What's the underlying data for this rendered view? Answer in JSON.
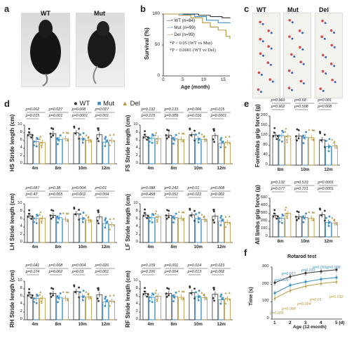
{
  "panel_a": {
    "letter": "a",
    "labels": [
      "WT",
      "Mut"
    ]
  },
  "panel_b": {
    "letter": "b",
    "ylabel": "Survival (%)",
    "xlabel": "Age (month)",
    "yticks": [
      "100",
      "50",
      "0"
    ],
    "xticks": [
      "0",
      "5",
      "10",
      "15"
    ],
    "legend": [
      "WT (n=84)",
      "Mut (n=99)",
      "Del (n=99)"
    ],
    "stats": [
      "*P < 0.05 (WT vs Mut)",
      "*P < 0.0001 (WT vs Del)"
    ],
    "colors": {
      "WT": "#333333",
      "Mut": "#3b8fc4",
      "Del": "#b8963c"
    }
  },
  "panel_c": {
    "letter": "c",
    "labels": [
      "WT",
      "Mut",
      "Del"
    ]
  },
  "panel_d": {
    "letter": "d",
    "legend": [
      "WT",
      "Mut",
      "Del"
    ],
    "xticks": [
      "4m",
      "8m",
      "10m",
      "12m"
    ],
    "charts": [
      {
        "ylabel": "HS Stride length (cm)",
        "yticks": [
          "0",
          "2",
          "4",
          "6",
          "8",
          "10"
        ],
        "p": [
          [
            "p=0.002",
            "p=0.015"
          ],
          [
            "p=0.027",
            "p=0.001"
          ],
          [
            "p=0.008",
            "p=0.0001"
          ],
          [
            "p=0.027",
            "p=0.001"
          ]
        ]
      },
      {
        "ylabel": "FS Stride length (cm)",
        "yticks": [
          "0",
          "2",
          "4",
          "6",
          "8",
          "10"
        ],
        "p": [
          [
            "p=0.132",
            "p=0.215"
          ],
          [
            "p=0.133",
            "p=0.009"
          ],
          [
            "p=0.006",
            "p=0.016"
          ],
          [
            "p=0.015",
            "p=0.0001"
          ]
        ]
      },
      {
        "ylabel": "LH Stride length (cm)",
        "yticks": [
          "0",
          "2",
          "4",
          "6",
          "8",
          "10"
        ],
        "p": [
          [
            "p=0.087",
            "p=0.47"
          ],
          [
            "p=0.38",
            "p=0.065"
          ],
          [
            "p=0.004",
            "p=0.002"
          ],
          [
            "p=0.01",
            "p=0.004"
          ]
        ]
      },
      {
        "ylabel": "LF Stride length (cm)",
        "yticks": [
          "0",
          "2",
          "4",
          "6",
          "8",
          "10"
        ],
        "p": [
          [
            "p=0.088",
            "p=0.458"
          ],
          [
            "p=0.242",
            "p=0.051"
          ],
          [
            "p=0.01",
            "p=0.022"
          ],
          [
            "p=0.008",
            "p=0.002"
          ]
        ]
      },
      {
        "ylabel": "RH Stride length (cm)",
        "yticks": [
          "0",
          "2",
          "4",
          "6",
          "8",
          "10"
        ],
        "p": [
          [
            "p=0.041",
            "p=0.174"
          ],
          [
            "p=0.008",
            "p=0.002"
          ],
          [
            "p=0.004",
            "p=0.03"
          ],
          [
            "p=0.026",
            "p=0.001"
          ]
        ]
      },
      {
        "ylabel": "RF Stride length (cm)",
        "yticks": [
          "0",
          "2",
          "4",
          "6",
          "8",
          "10"
        ],
        "p": [
          [
            "p=0.109",
            "p=0.106"
          ],
          [
            "p=0.001",
            "p=0.004"
          ],
          [
            "p=0.014",
            "p=0.013"
          ],
          [
            "p=0.023",
            "p=0.002"
          ]
        ]
      }
    ]
  },
  "panel_e": {
    "letter": "e",
    "xticks": [
      "8m",
      "10m",
      "12m"
    ],
    "charts": [
      {
        "ylabel": "Forelimbs grip force (g)",
        "yticks": [
          "0",
          "40",
          "80",
          "120",
          "160",
          "200"
        ],
        "p": [
          [
            "p=0.969",
            "p=0.962"
          ],
          [
            "p=0.68",
            "p=0.508"
          ],
          [
            "p=0.001",
            "p=0.008"
          ]
        ]
      },
      {
        "ylabel": "All limbs grip force (g)",
        "yticks": [
          "0",
          "100",
          "200",
          "300",
          "400",
          "500"
        ],
        "p": [
          [
            "p=0.132",
            "p=0.077"
          ],
          [
            "p=0.519",
            "p=0.721"
          ],
          [
            "p=0.0001",
            "p=0.0001"
          ]
        ]
      }
    ]
  },
  "panel_f": {
    "letter": "f",
    "title": "Rotarod test",
    "ylabel": "Time (s)",
    "xlabel": "Age (12-month)",
    "xticks": [
      "1",
      "2",
      "3",
      "4",
      "5 (d)"
    ],
    "yticks": [
      "0",
      "100",
      "200",
      "300"
    ],
    "p_mut": [
      "p=0.026",
      "p=0.017",
      "p=0.033",
      "p=0.059",
      "p=0.038"
    ],
    "p_del": [
      "p=0.005",
      "p=0.008",
      "p=0.004",
      "p=0.01",
      "p=0.032"
    ]
  },
  "chart_data": [
    {
      "type": "bar",
      "title": "",
      "ylabel": "HS Stride length (cm)",
      "categories": [
        "4m",
        "8m",
        "10m",
        "12m"
      ],
      "ylim": [
        0,
        10
      ],
      "series": [
        {
          "name": "WT",
          "values": [
            7.6,
            7.8,
            8.0,
            7.5
          ]
        },
        {
          "name": "Mut",
          "values": [
            5.7,
            6.3,
            6.4,
            5.6
          ]
        },
        {
          "name": "Del",
          "values": [
            5.5,
            6.5,
            6.1,
            6.0
          ]
        }
      ]
    },
    {
      "type": "bar",
      "title": "",
      "ylabel": "FS Stride length (cm)",
      "categories": [
        "4m",
        "8m",
        "10m",
        "12m"
      ],
      "ylim": [
        0,
        10
      ],
      "series": [
        {
          "name": "WT",
          "values": [
            7.0,
            7.4,
            7.5,
            7.3
          ]
        },
        {
          "name": "Mut",
          "values": [
            6.6,
            6.4,
            6.4,
            5.3
          ]
        },
        {
          "name": "Del",
          "values": [
            6.5,
            6.3,
            6.3,
            5.5
          ]
        }
      ]
    },
    {
      "type": "bar",
      "title": "",
      "ylabel": "LH Stride length (cm)",
      "categories": [
        "4m",
        "8m",
        "10m",
        "12m"
      ],
      "ylim": [
        0,
        10
      ],
      "series": [
        {
          "name": "WT",
          "values": [
            6.9,
            7.0,
            7.4,
            6.6
          ]
        },
        {
          "name": "Mut",
          "values": [
            6.2,
            6.4,
            6.2,
            4.9
          ]
        },
        {
          "name": "Del",
          "values": [
            6.3,
            6.0,
            5.8,
            4.6
          ]
        }
      ]
    },
    {
      "type": "bar",
      "title": "",
      "ylabel": "LF Stride length (cm)",
      "categories": [
        "4m",
        "8m",
        "10m",
        "12m"
      ],
      "ylim": [
        0,
        10
      ],
      "series": [
        {
          "name": "WT",
          "values": [
            7.1,
            7.0,
            7.1,
            6.8
          ]
        },
        {
          "name": "Mut",
          "values": [
            6.4,
            6.4,
            6.2,
            5.5
          ]
        },
        {
          "name": "Del",
          "values": [
            6.6,
            6.3,
            5.9,
            5.2
          ]
        }
      ]
    },
    {
      "type": "bar",
      "title": "",
      "ylabel": "RH Stride length (cm)",
      "categories": [
        "4m",
        "8m",
        "10m",
        "12m"
      ],
      "ylim": [
        0,
        10
      ],
      "series": [
        {
          "name": "WT",
          "values": [
            6.5,
            6.8,
            7.3,
            6.5
          ]
        },
        {
          "name": "Mut",
          "values": [
            5.5,
            5.8,
            6.0,
            4.6
          ]
        },
        {
          "name": "Del",
          "values": [
            5.6,
            5.6,
            5.9,
            4.8
          ]
        }
      ]
    },
    {
      "type": "bar",
      "title": "",
      "ylabel": "RF Stride length (cm)",
      "categories": [
        "4m",
        "8m",
        "10m",
        "12m"
      ],
      "ylim": [
        0,
        10
      ],
      "series": [
        {
          "name": "WT",
          "values": [
            6.8,
            6.8,
            7.0,
            6.6
          ]
        },
        {
          "name": "Mut",
          "values": [
            5.8,
            6.0,
            6.0,
            5.2
          ]
        },
        {
          "name": "Del",
          "values": [
            6.1,
            5.8,
            5.7,
            5.4
          ]
        }
      ]
    },
    {
      "type": "bar",
      "title": "",
      "ylabel": "Forelimbs grip force (g)",
      "categories": [
        "8m",
        "10m",
        "12m"
      ],
      "ylim": [
        0,
        200
      ],
      "series": [
        {
          "name": "WT",
          "values": [
            122,
            118,
            103
          ]
        },
        {
          "name": "Mut",
          "values": [
            120,
            114,
            76
          ]
        },
        {
          "name": "Del",
          "values": [
            118,
            112,
            78
          ]
        }
      ]
    },
    {
      "type": "bar",
      "title": "",
      "ylabel": "All limbs grip force (g)",
      "categories": [
        "8m",
        "10m",
        "12m"
      ],
      "ylim": [
        0,
        500
      ],
      "series": [
        {
          "name": "WT",
          "values": [
            275,
            260,
            285
          ]
        },
        {
          "name": "Mut",
          "values": [
            240,
            250,
            188
          ]
        },
        {
          "name": "Del",
          "values": [
            305,
            240,
            180
          ]
        }
      ]
    },
    {
      "type": "line",
      "title": "Rotarod test",
      "xlabel": "Age (12-month)",
      "ylabel": "Time (s)",
      "x": [
        1,
        2,
        3,
        4,
        5
      ],
      "ylim": [
        0,
        300
      ],
      "series": [
        {
          "name": "WT",
          "values": [
            210,
            245,
            265,
            275,
            285
          ]
        },
        {
          "name": "Mut",
          "values": [
            150,
            195,
            215,
            230,
            240
          ]
        },
        {
          "name": "Del",
          "values": [
            120,
            165,
            190,
            205,
            215
          ]
        }
      ]
    },
    {
      "type": "line",
      "title": "",
      "xlabel": "Age (month)",
      "ylabel": "Survival (%)",
      "xlim": [
        0,
        17
      ],
      "ylim": [
        0,
        100
      ],
      "series": [
        {
          "name": "WT (n=84)",
          "x": [
            0,
            6,
            9,
            12,
            15,
            17
          ],
          "values": [
            100,
            100,
            98,
            96,
            94,
            93
          ]
        },
        {
          "name": "Mut (n=99)",
          "x": [
            0,
            5,
            8,
            11,
            14,
            17
          ],
          "values": [
            100,
            99,
            96,
            90,
            86,
            85
          ]
        },
        {
          "name": "Del (n=99)",
          "x": [
            0,
            4,
            7,
            10,
            12,
            14,
            16,
            17
          ],
          "values": [
            100,
            98,
            94,
            86,
            79,
            74,
            64,
            60
          ]
        }
      ]
    }
  ]
}
